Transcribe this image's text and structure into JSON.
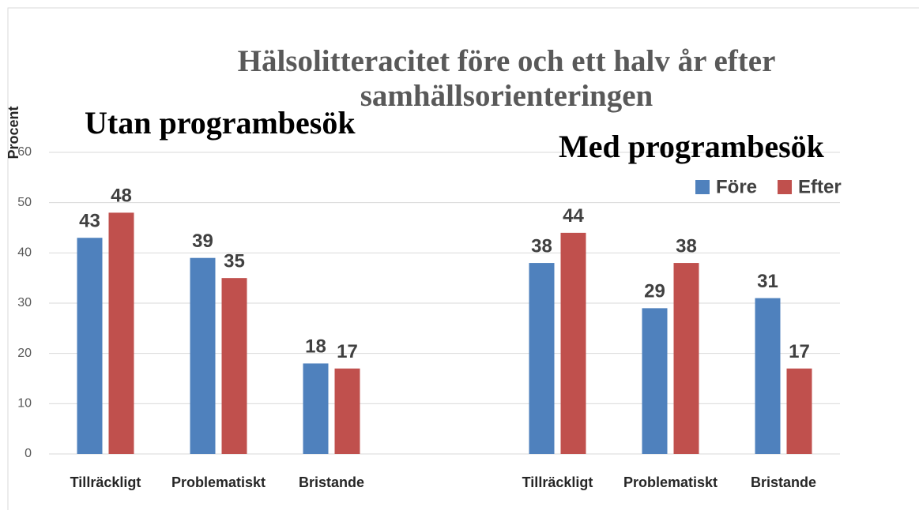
{
  "chart_data": {
    "type": "bar",
    "title": "Hälsolitteracitet före och ett halv år efter samhällsorienteringen",
    "y_label": "Procent",
    "annotations": [
      "Utan programbesök",
      "Med programbesök"
    ],
    "categories": [
      "Tillräckligt",
      "Problematiskt",
      "Bristande",
      null,
      "Tillräckligt",
      "Problematiskt",
      "Bristande"
    ],
    "series": [
      {
        "name": "Före",
        "color": "#4f81bd",
        "values": [
          43,
          39,
          18,
          null,
          38,
          29,
          31
        ]
      },
      {
        "name": "Efter",
        "color": "#c0504d",
        "values": [
          48,
          35,
          17,
          null,
          44,
          38,
          17
        ]
      }
    ],
    "ylim": [
      0,
      60
    ],
    "yticks": [
      0,
      10,
      20,
      30,
      40,
      50,
      60
    ],
    "grid": true,
    "legend": "top-right"
  }
}
